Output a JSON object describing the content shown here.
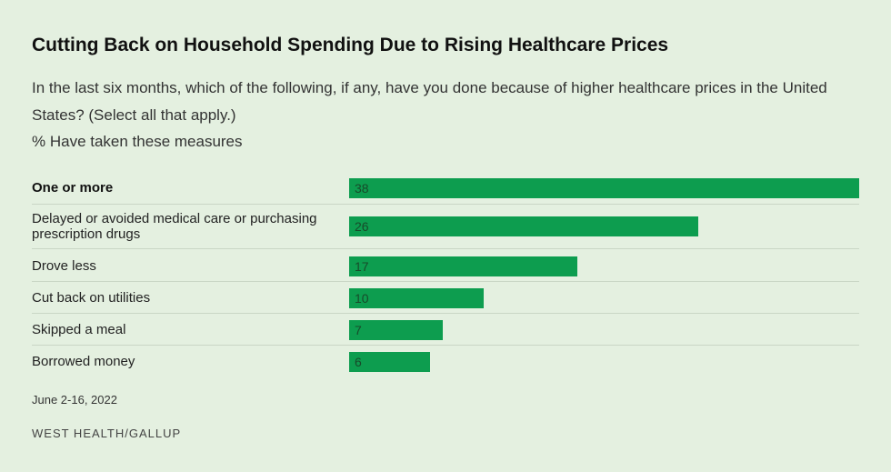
{
  "title": "Cutting Back on Household Spending Due to Rising Healthcare Prices",
  "subtitle": "In the last six months, which of the following, if any, have you done because of higher healthcare prices in the United States? (Select all that apply.)",
  "measure_label": "% Have taken these measures",
  "date": "June 2-16, 2022",
  "source": "WEST HEALTH/GALLUP",
  "colors": {
    "bar": "#0d9d4f",
    "background": "#e4f0e0"
  },
  "chart_data": {
    "type": "bar",
    "orientation": "horizontal",
    "categories": [
      "One or more",
      "Delayed or avoided medical care or purchasing prescription drugs",
      "Drove less",
      "Cut back on utilities",
      "Skipped a meal",
      "Borrowed money"
    ],
    "values": [
      38,
      26,
      17,
      10,
      7,
      6
    ],
    "bold_categories": [
      "One or more"
    ],
    "xlim": [
      0,
      38
    ],
    "grid": false,
    "data_labels": true
  }
}
